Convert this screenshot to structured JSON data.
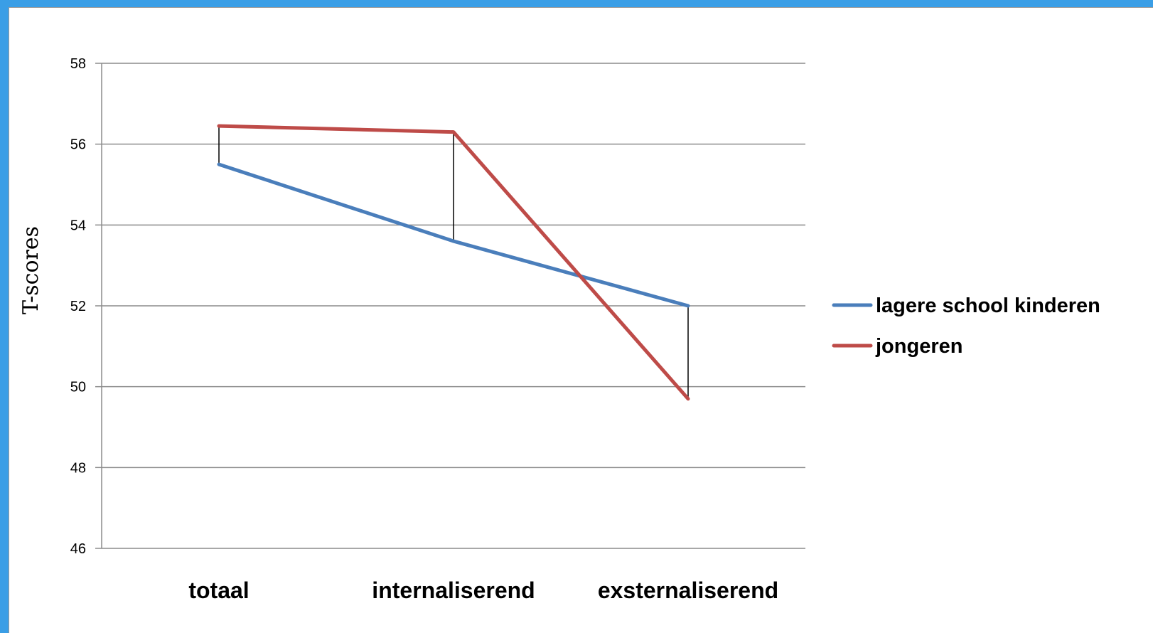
{
  "chart_data": {
    "type": "line",
    "title": "",
    "xlabel": "",
    "ylabel": "T-scores",
    "categories": [
      "totaal",
      "internaliserend",
      "exsternaliserend"
    ],
    "ylim": [
      46,
      58
    ],
    "yticks": [
      46,
      48,
      50,
      52,
      54,
      56,
      58
    ],
    "grid": true,
    "legend": "right",
    "series": [
      {
        "name": "lagere school kinderen",
        "values": [
          55.5,
          53.6,
          52.0
        ],
        "color": "#4a7ebb"
      },
      {
        "name": "jongeren",
        "values": [
          56.45,
          56.3,
          49.7
        ],
        "color": "#be4b48"
      }
    ],
    "difference_lines": true
  }
}
